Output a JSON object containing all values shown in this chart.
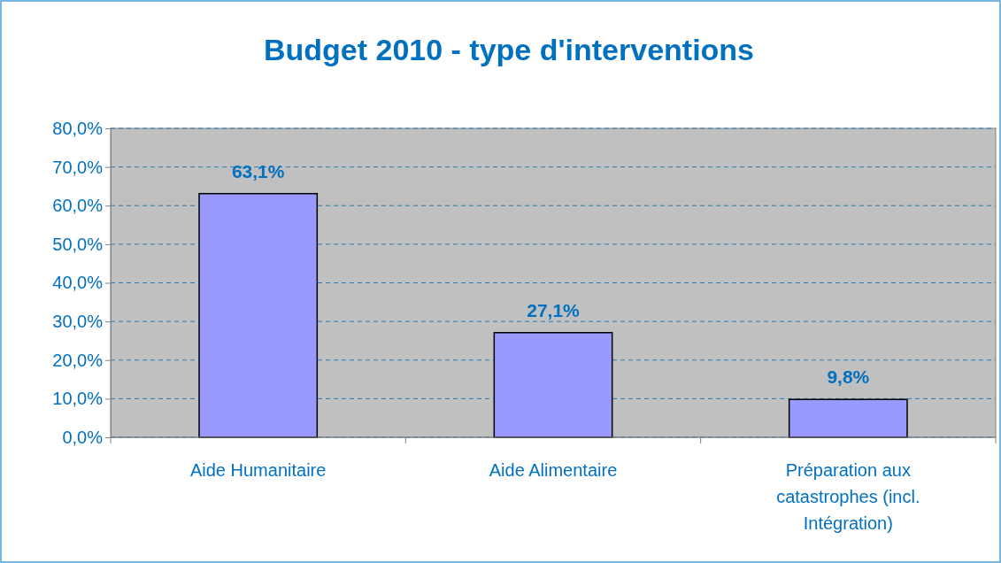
{
  "chart_data": {
    "type": "bar",
    "title": "Budget 2010 - type d'interventions",
    "categories": [
      "Aide Humanitaire",
      "Aide Alimentaire",
      "Préparation aux catastrophes (incl. Intégration)"
    ],
    "values": [
      63.1,
      27.1,
      9.8
    ],
    "color": "#9999ff",
    "value_labels": [
      "63,1%",
      "27,1%",
      "9,8%"
    ],
    "ylim": [
      0,
      80
    ],
    "yticks": [
      {
        "value": 0,
        "label": "0,0%"
      },
      {
        "value": 10,
        "label": "10,0%"
      },
      {
        "value": 20,
        "label": "20,0%"
      },
      {
        "value": 30,
        "label": "30,0%"
      },
      {
        "value": 40,
        "label": "40,0%"
      },
      {
        "value": 50,
        "label": "50,0%"
      },
      {
        "value": 60,
        "label": "60,0%"
      },
      {
        "value": 70,
        "label": "70,0%"
      },
      {
        "value": 80,
        "label": "80,0%"
      }
    ],
    "grid": "y"
  }
}
